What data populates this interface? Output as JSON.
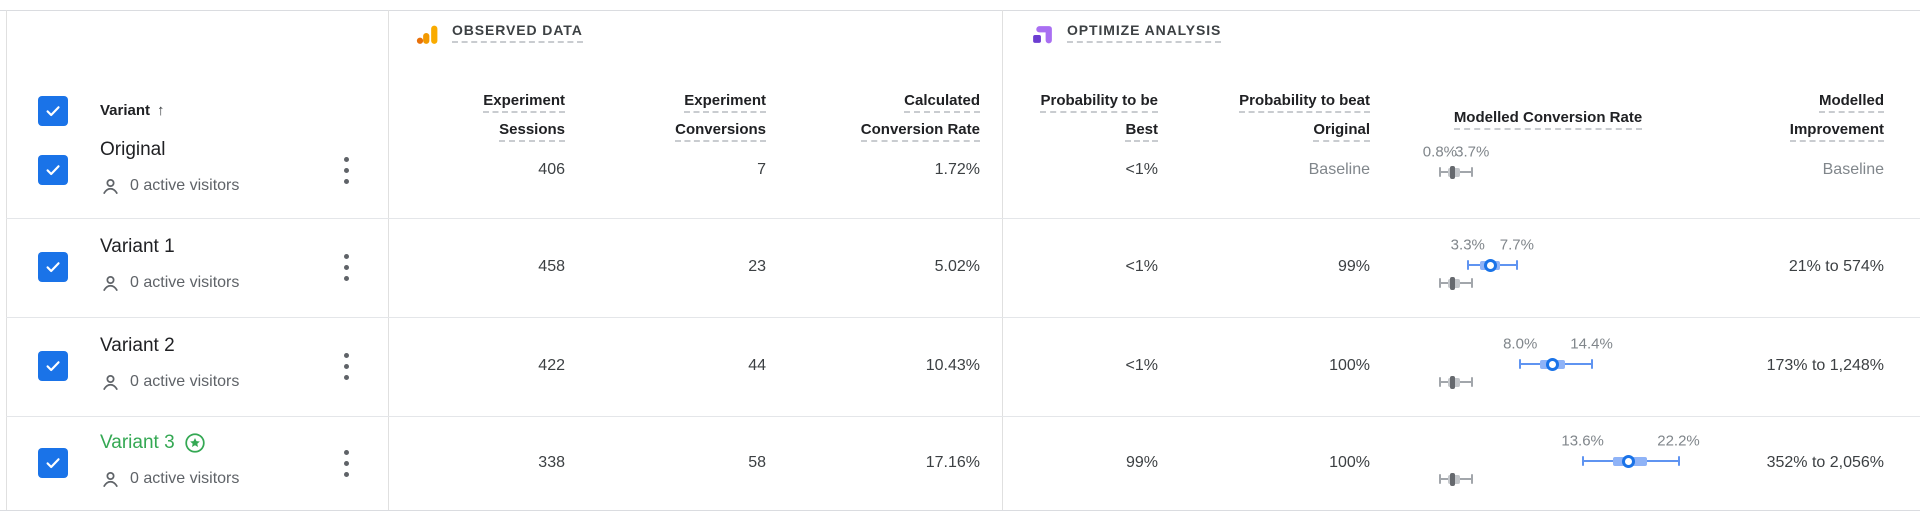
{
  "table": {
    "header": {
      "variant_label": "Variant",
      "sort_arrow": "↑"
    },
    "sections": {
      "observed": {
        "label": "OBSERVED DATA",
        "icon": "analytics-bars-icon"
      },
      "optimize": {
        "label": "OPTIMIZE ANALYSIS",
        "icon": "optimize-logo-icon"
      }
    },
    "columns": [
      {
        "id": "sessions",
        "lines": [
          "Experiment",
          "Sessions"
        ]
      },
      {
        "id": "conversions",
        "lines": [
          "Experiment",
          "Conversions"
        ]
      },
      {
        "id": "conv_rate",
        "lines": [
          "Calculated",
          "Conversion Rate"
        ]
      },
      {
        "id": "prob_best",
        "lines": [
          "Probability to be",
          "Best"
        ]
      },
      {
        "id": "prob_beat",
        "lines": [
          "Probability to beat",
          "Original"
        ]
      },
      {
        "id": "modelled_cr",
        "lines": [
          "Modelled Conversion Rate"
        ]
      },
      {
        "id": "improvement",
        "lines": [
          "Modelled",
          "Improvement"
        ]
      }
    ],
    "select_all_checked": true,
    "rows": [
      {
        "name": "Original",
        "winner": false,
        "checked": true,
        "active_visitors": "0 active visitors",
        "sessions": "406",
        "conversions": "7",
        "conv_rate": "1.72%",
        "prob_best": "<1%",
        "prob_beat": "Baseline",
        "improvement": "Baseline"
      },
      {
        "name": "Variant 1",
        "winner": false,
        "checked": true,
        "active_visitors": "0 active visitors",
        "sessions": "458",
        "conversions": "23",
        "conv_rate": "5.02%",
        "prob_best": "<1%",
        "prob_beat": "99%",
        "improvement": "21% to 574%"
      },
      {
        "name": "Variant 2",
        "winner": false,
        "checked": true,
        "active_visitors": "0 active visitors",
        "sessions": "422",
        "conversions": "44",
        "conv_rate": "10.43%",
        "prob_best": "<1%",
        "prob_beat": "100%",
        "improvement": "173% to 1,248%"
      },
      {
        "name": "Variant 3",
        "winner": true,
        "checked": true,
        "active_visitors": "0 active visitors",
        "sessions": "338",
        "conversions": "58",
        "conv_rate": "17.16%",
        "prob_best": "99%",
        "prob_beat": "100%",
        "improvement": "352% to 2,056%"
      }
    ]
  },
  "chart_data": {
    "type": "interval",
    "title": "Modelled Conversion Rate",
    "unit": "percent",
    "baseline_interval": {
      "low": 0.8,
      "high": 3.7,
      "box_low": 1.5,
      "box_high": 2.6,
      "center": 1.9
    },
    "series": [
      {
        "name": "Original",
        "style": "gray",
        "low": 0.8,
        "high": 3.7,
        "box_low": 1.5,
        "box_high": 2.6,
        "median": 1.9,
        "labels": [
          "0.8%",
          "3.7%"
        ]
      },
      {
        "name": "Variant 1",
        "style": "blue",
        "low": 3.3,
        "high": 7.7,
        "box_low": 4.4,
        "box_high": 6.2,
        "median": 5.3,
        "labels": [
          "3.3%",
          "7.7%"
        ]
      },
      {
        "name": "Variant 2",
        "style": "blue",
        "low": 8.0,
        "high": 14.4,
        "box_low": 9.8,
        "box_high": 12.0,
        "median": 10.9,
        "labels": [
          "8.0%",
          "14.4%"
        ]
      },
      {
        "name": "Variant 3",
        "style": "blue",
        "low": 13.6,
        "high": 22.2,
        "box_low": 16.3,
        "box_high": 19.4,
        "median": 17.7,
        "labels": [
          "13.6%",
          "22.2%"
        ]
      }
    ],
    "colors": {
      "variant_accent": "#1a73e8",
      "winner_green": "#34a853",
      "baseline_gray": "#a2a6ab"
    }
  }
}
